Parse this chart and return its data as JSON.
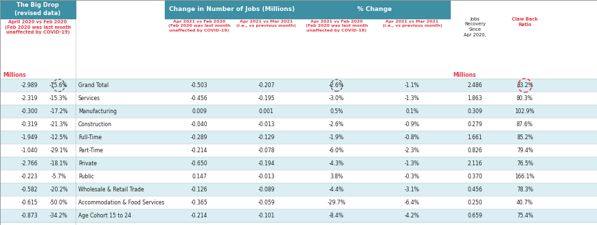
{
  "teal": "#3d8fa3",
  "red": "#e63946",
  "white": "#ffffff",
  "dark": "#222222",
  "row_colors": [
    "#daeef3",
    "#ffffff"
  ],
  "light_teal_row": "#daeef3",
  "row_labels": [
    "Grand Total",
    "Services",
    "Manufacturing",
    "Construction",
    "Full-Time",
    "Part-Time",
    "Private",
    "Public",
    "Wholesale & Retail Trade",
    "Accommodation & Food Services",
    "Age Cohort 15 to 24"
  ],
  "col_big_drop_millions": [
    "-2.989",
    "-2.319",
    "-0.300",
    "-0.319",
    "-1.949",
    "-1.040",
    "-2.766",
    "-0.223",
    "-0.582",
    "-0.615",
    "-0.873"
  ],
  "col_big_drop_pct": [
    "-15.6%",
    "-15.3%",
    "-17.2%",
    "-21.3%",
    "-12.5%",
    "-29.1%",
    "-18.1%",
    "-5.7%",
    "-20.2%",
    "-50.0%",
    "-34.2%"
  ],
  "col_change_feb": [
    "-0.503",
    "-0.456",
    "0.009",
    "-0.040",
    "-0.289",
    "-0.214",
    "-0.650",
    "0.147",
    "-0.126",
    "-0.365",
    "-0.214"
  ],
  "col_change_mar": [
    "-0.207",
    "-0.195",
    "0.001",
    "-0.013",
    "-0.129",
    "-0.078",
    "-0.194",
    "-0.013",
    "-0.089",
    "-0.059",
    "-0.101"
  ],
  "col_pct_feb": [
    "-2.6%",
    "-3.0%",
    "0.5%",
    "-2.6%",
    "-1.9%",
    "-6.0%",
    "-4.3%",
    "3.8%",
    "-4.4%",
    "-29.7%",
    "-8.4%"
  ],
  "col_pct_mar": [
    "-1.1%",
    "-1.3%",
    "0.1%",
    "-0.9%",
    "-0.8%",
    "-2.3%",
    "-1.3%",
    "-0.3%",
    "-3.1%",
    "-6.4%",
    "-4.2%"
  ],
  "col_recovery": [
    "2.486",
    "1.863",
    "0.309",
    "0.279",
    "1.661",
    "0.826",
    "2.116",
    "0.370",
    "0.456",
    "0.250",
    "0.659"
  ],
  "col_clawback": [
    "83.2%",
    "80.3%",
    "102.9%",
    "87.6%",
    "85.2%",
    "79.4%",
    "76.5%",
    "166.1%",
    "78.3%",
    "40.7%",
    "75.4%"
  ],
  "figw": 8.7,
  "figh": 3.28,
  "dpi": 100
}
